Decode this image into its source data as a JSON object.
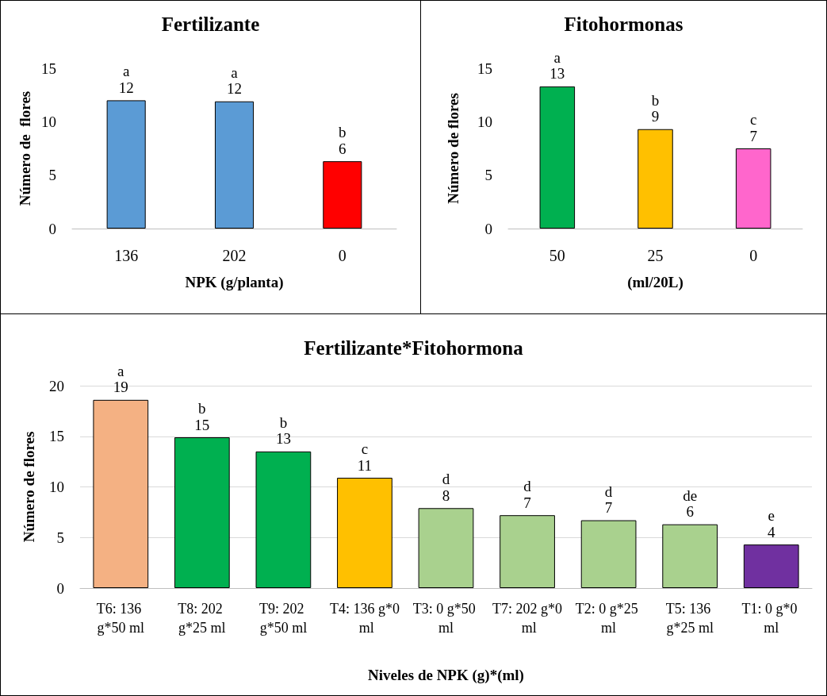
{
  "chart_data": [
    {
      "type": "bar",
      "title": "Fertilizante",
      "xlabel": "NPK (g/planta)",
      "ylabel": "Número de  flores",
      "categories": [
        "136",
        "202",
        "0"
      ],
      "values": [
        12.0,
        11.9,
        6.3
      ],
      "colors": [
        "#5b9bd5",
        "#5b9bd5",
        "#ff0000"
      ],
      "value_labels": [
        "12",
        "12",
        "6"
      ],
      "ylim": [
        0,
        15
      ],
      "yticks": [
        0,
        5,
        10,
        15
      ],
      "grid": false,
      "annotations": [
        {
          "text": "a",
          "x": "136",
          "y": 12.0
        },
        {
          "text": "a",
          "x": "202",
          "y": 11.9
        },
        {
          "text": "b",
          "x": "0",
          "y": 6.3
        }
      ]
    },
    {
      "type": "bar",
      "title": "Fitohormonas",
      "xlabel": "(ml/20L)",
      "ylabel": "Número de flores",
      "categories": [
        "50",
        "25",
        "0"
      ],
      "values": [
        13.3,
        9.3,
        7.5
      ],
      "colors": [
        "#00b050",
        "#ffc000",
        "#ff66cc"
      ],
      "value_labels": [
        "13",
        "9",
        "7"
      ],
      "ylim": [
        0,
        15
      ],
      "yticks": [
        0,
        5,
        10,
        15
      ],
      "grid": false,
      "annotations": [
        {
          "text": "a",
          "x": "50",
          "y": 13.3
        },
        {
          "text": "b",
          "x": "25",
          "y": 9.3
        },
        {
          "text": "c",
          "x": "0",
          "y": 7.5
        }
      ]
    },
    {
      "type": "bar",
      "title": "Fertilizante*Fitohormona",
      "xlabel": "Niveles de NPK (g)*(ml)",
      "ylabel": "Número de flores",
      "categories": [
        "T6: 136 g*50 ml",
        "T8: 202 g*25 ml",
        "T9: 202 g*50 ml",
        "T4: 136 g*0 ml",
        "T3: 0 g*50 ml",
        "T7: 202 g*0 ml",
        "T2: 0 g*25 ml",
        "T5: 136 g*25 ml",
        "T1: 0 g*0 ml"
      ],
      "values": [
        18.6,
        14.9,
        13.5,
        10.9,
        7.9,
        7.2,
        6.7,
        6.3,
        4.3
      ],
      "colors": [
        "#f4b183",
        "#00b050",
        "#00b050",
        "#ffc000",
        "#a9d18e",
        "#a9d18e",
        "#a9d18e",
        "#a9d18e",
        "#7030a0"
      ],
      "value_labels": [
        "19",
        "15",
        "13",
        "11",
        "8",
        "7",
        "7",
        "6",
        "4"
      ],
      "ylim": [
        0,
        20
      ],
      "yticks": [
        0,
        5,
        10,
        15,
        20
      ],
      "grid": "y",
      "annotations": [
        {
          "text": "a",
          "x": "T6: 136 g*50 ml",
          "y": 18.6
        },
        {
          "text": "b",
          "x": "T8: 202 g*25 ml",
          "y": 14.9
        },
        {
          "text": "b",
          "x": "T9: 202 g*50 ml",
          "y": 13.5
        },
        {
          "text": "c",
          "x": "T4: 136 g*0 ml",
          "y": 10.9
        },
        {
          "text": "d",
          "x": "T3: 0 g*50 ml",
          "y": 7.9
        },
        {
          "text": "d",
          "x": "T7: 202 g*0 ml",
          "y": 7.2
        },
        {
          "text": "d",
          "x": "T2: 0 g*25 ml",
          "y": 6.7
        },
        {
          "text": "de",
          "x": "T5: 136 g*25 ml",
          "y": 6.3
        },
        {
          "text": "e",
          "x": "T1: 0 g*0 ml",
          "y": 4.3
        }
      ]
    }
  ]
}
